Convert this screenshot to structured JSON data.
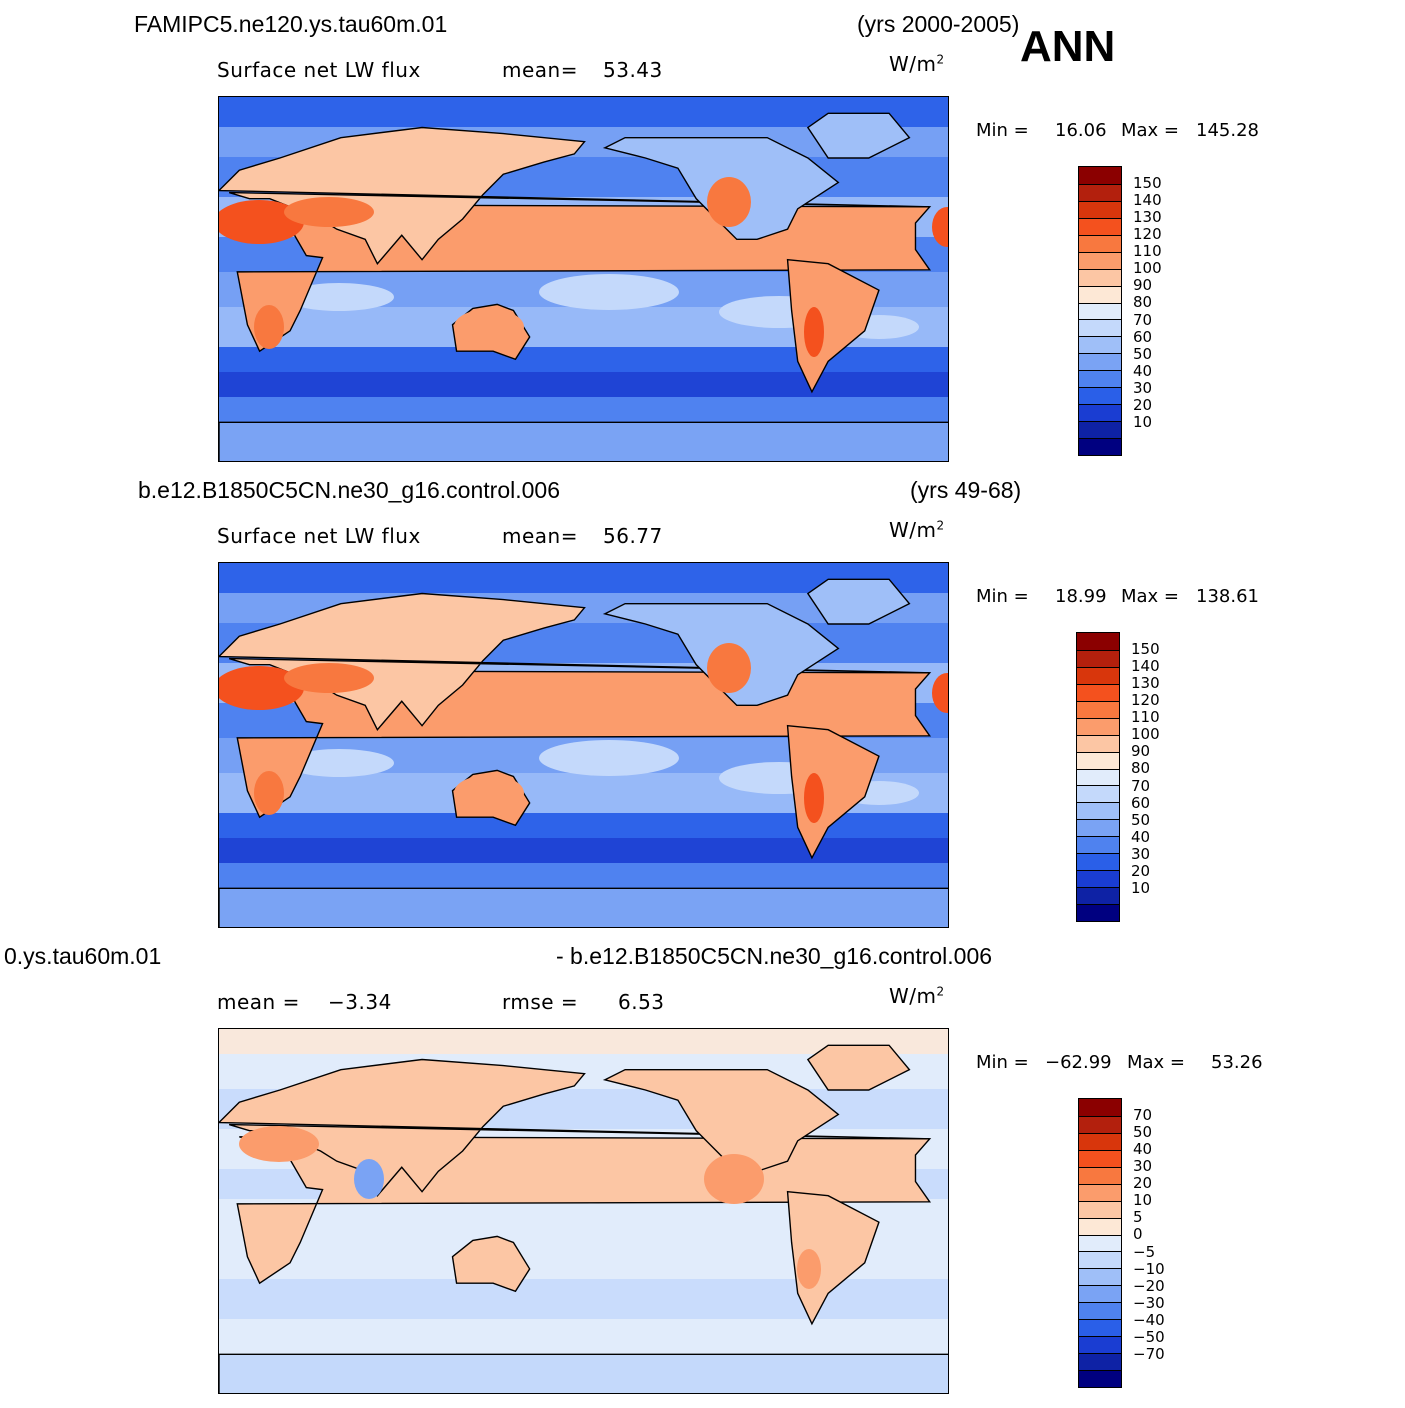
{
  "annotation": "ANN",
  "chart_data": [
    {
      "type": "heatmap",
      "case_title": "FAMIPC5.ne120.ys.tau60m.01",
      "period": "(yrs 2000-2005)",
      "variable": "Surface net LW flux",
      "stat1_label": "mean=",
      "stat1_value": "53.43",
      "units": "W/m",
      "units_sup": "2",
      "min_label": "Min =",
      "min_value": "16.06",
      "max_label": "Max =",
      "max_value": "145.28",
      "colorbar": {
        "levels": [
          "150",
          "140",
          "130",
          "120",
          "110",
          "100",
          "90",
          "80",
          "70",
          "60",
          "50",
          "40",
          "30",
          "20",
          "10"
        ],
        "colors": [
          "#8b0000",
          "#b3200d",
          "#d8360c",
          "#f4511e",
          "#f8783f",
          "#fb9c6c",
          "#fcc6a4",
          "#fde8d6",
          "#e1ecfb",
          "#c4d9fb",
          "#9fbff8",
          "#7aa3f4",
          "#4f82ef",
          "#2a5fe8",
          "#1a3dd2",
          "#0e22a5",
          "#000080"
        ]
      }
    },
    {
      "type": "heatmap",
      "case_title": "b.e12.B1850C5CN.ne30_g16.control.006",
      "period": "(yrs 49-68)",
      "variable": "Surface net LW flux",
      "stat1_label": "mean=",
      "stat1_value": "56.77",
      "units": "W/m",
      "units_sup": "2",
      "min_label": "Min =",
      "min_value": "18.99",
      "max_label": "Max =",
      "max_value": "138.61",
      "colorbar": {
        "levels": [
          "150",
          "140",
          "130",
          "120",
          "110",
          "100",
          "90",
          "80",
          "70",
          "60",
          "50",
          "40",
          "30",
          "20",
          "10"
        ],
        "colors": [
          "#8b0000",
          "#b3200d",
          "#d8360c",
          "#f4511e",
          "#f8783f",
          "#fb9c6c",
          "#fcc6a4",
          "#fde8d6",
          "#e1ecfb",
          "#c4d9fb",
          "#9fbff8",
          "#7aa3f4",
          "#4f82ef",
          "#2a5fe8",
          "#1a3dd2",
          "#0e22a5",
          "#000080"
        ]
      }
    },
    {
      "type": "heatmap",
      "case_title": "0.ys.tau60m.01",
      "period": "- b.e12.B1850C5CN.ne30_g16.control.006",
      "stat1_label": "mean =",
      "stat1_value": "−3.34",
      "stat2_label": "rmse =",
      "stat2_value": "6.53",
      "units": "W/m",
      "units_sup": "2",
      "min_label": "Min =",
      "min_value": "−62.99",
      "max_label": "Max =",
      "max_value": "53.26",
      "colorbar": {
        "levels": [
          "70",
          "50",
          "40",
          "30",
          "20",
          "10",
          "5",
          "0",
          "−5",
          "−10",
          "−20",
          "−30",
          "−40",
          "−50",
          "−70"
        ],
        "colors": [
          "#8b0000",
          "#b3200d",
          "#d8360c",
          "#f4511e",
          "#f8783f",
          "#fb9c6c",
          "#fcc6a4",
          "#fde8d6",
          "#e1ecfb",
          "#c4d9fb",
          "#9fbff8",
          "#7aa3f4",
          "#4f82ef",
          "#2a5fe8",
          "#1a3dd2",
          "#0e22a5",
          "#000080"
        ]
      }
    }
  ]
}
